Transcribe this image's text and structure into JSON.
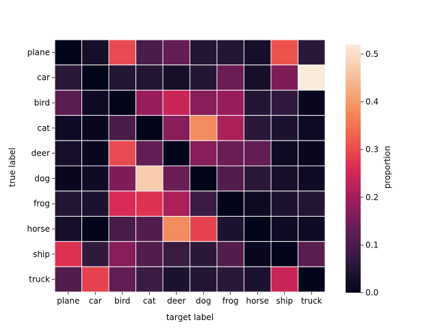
{
  "chart_data": {
    "type": "heatmap",
    "title": "",
    "xlabel": "target label",
    "ylabel": "true label",
    "x_categories": [
      "plane",
      "car",
      "bird",
      "cat",
      "deer",
      "dog",
      "frog",
      "horse",
      "ship",
      "truck"
    ],
    "y_categories": [
      "plane",
      "car",
      "bird",
      "cat",
      "deer",
      "dog",
      "frog",
      "horse",
      "ship",
      "truck"
    ],
    "values": [
      [
        0.0,
        0.03,
        0.3,
        0.1,
        0.13,
        0.05,
        0.05,
        0.03,
        0.31,
        0.06
      ],
      [
        0.06,
        0.0,
        0.05,
        0.05,
        0.03,
        0.05,
        0.14,
        0.03,
        0.16,
        0.52
      ],
      [
        0.12,
        0.02,
        0.0,
        0.19,
        0.24,
        0.17,
        0.19,
        0.05,
        0.07,
        0.01
      ],
      [
        0.02,
        0.01,
        0.1,
        0.0,
        0.17,
        0.38,
        0.21,
        0.06,
        0.04,
        0.02
      ],
      [
        0.03,
        0.01,
        0.3,
        0.13,
        0.0,
        0.17,
        0.14,
        0.13,
        0.02,
        0.01
      ],
      [
        0.01,
        0.02,
        0.16,
        0.47,
        0.14,
        0.0,
        0.11,
        0.06,
        0.03,
        0.02
      ],
      [
        0.05,
        0.04,
        0.26,
        0.27,
        0.21,
        0.08,
        0.0,
        0.02,
        0.04,
        0.05
      ],
      [
        0.03,
        0.0,
        0.1,
        0.11,
        0.38,
        0.29,
        0.04,
        0.0,
        0.02,
        0.02
      ],
      [
        0.27,
        0.07,
        0.17,
        0.11,
        0.08,
        0.06,
        0.11,
        0.01,
        0.0,
        0.12
      ],
      [
        0.11,
        0.29,
        0.13,
        0.08,
        0.04,
        0.05,
        0.06,
        0.04,
        0.24,
        0.0
      ]
    ],
    "vmin": 0.0,
    "vmax": 0.52,
    "colorbar": {
      "label": "proportion",
      "ticks": [
        0.0,
        0.1,
        0.2,
        0.3,
        0.4,
        0.5
      ],
      "tick_labels": [
        "0.0",
        "0.1",
        "0.2",
        "0.3",
        "0.4",
        "0.5"
      ]
    },
    "colormap": [
      "#03051a",
      "#2e1a3c",
      "#621d54",
      "#9e1d5c",
      "#da2a55",
      "#f15f4b",
      "#f4935f",
      "#f7c19d",
      "#faebdd"
    ],
    "cell_border_color": "#ffffff"
  }
}
